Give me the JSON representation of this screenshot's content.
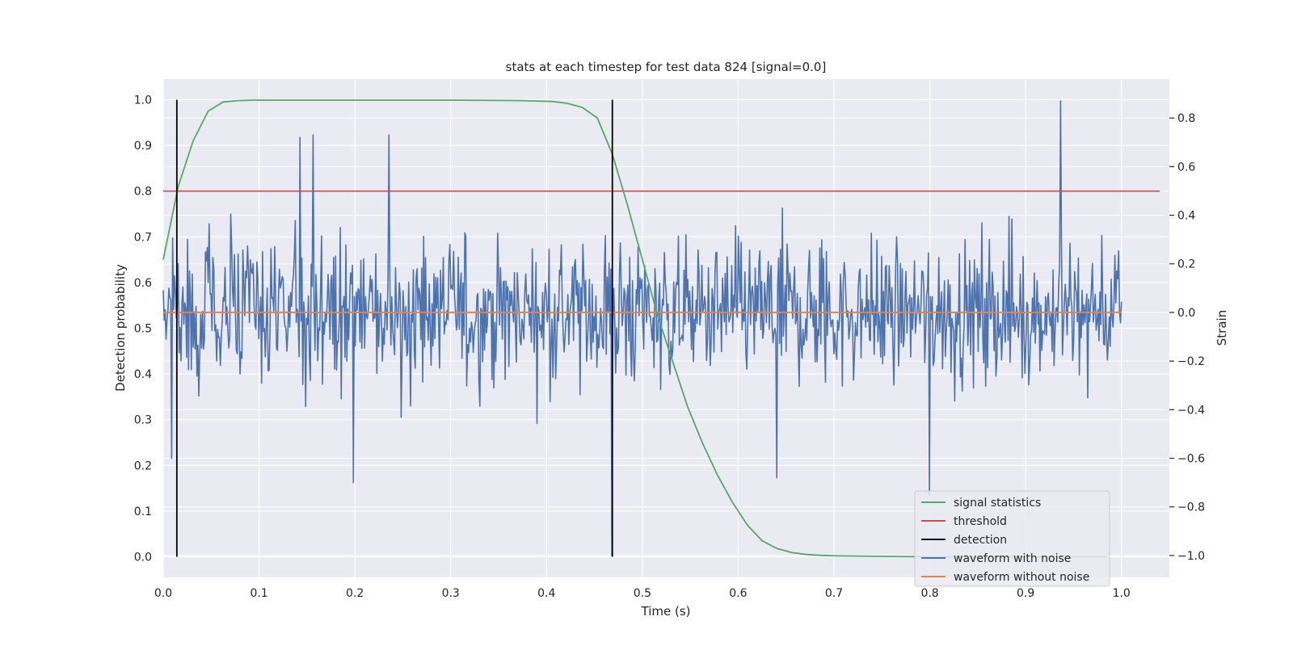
{
  "chart_data": {
    "type": "line",
    "title": "stats at each timestep for test data 824 [signal=0.0]",
    "xlabel": "Time (s)",
    "ylabel": "Detection probability",
    "y2label": "Strain",
    "xlim": [
      0.0,
      1.05
    ],
    "ylim": [
      -0.045,
      1.045
    ],
    "y2lim": [
      -1.09,
      0.96
    ],
    "xticks": [
      "0.0",
      "0.1",
      "0.2",
      "0.3",
      "0.4",
      "0.5",
      "0.6",
      "0.7",
      "0.8",
      "0.9",
      "1.0"
    ],
    "xtick_values": [
      0,
      0.1,
      0.2,
      0.3,
      0.4,
      0.5,
      0.6,
      0.7,
      0.8,
      0.9,
      1.0
    ],
    "yticks": [
      "0.0",
      "0.1",
      "0.2",
      "0.3",
      "0.4",
      "0.5",
      "0.6",
      "0.7",
      "0.8",
      "0.9",
      "1.0"
    ],
    "ytick_values": [
      0,
      0.1,
      0.2,
      0.3,
      0.4,
      0.5,
      0.6,
      0.7,
      0.8,
      0.9,
      1.0
    ],
    "y2ticks": [
      "0.8",
      "0.6",
      "0.4",
      "0.2",
      "0.0",
      "−0.2",
      "−0.4",
      "−0.6",
      "−0.8",
      "−1.0"
    ],
    "y2tick_values": [
      0.8,
      0.6,
      0.4,
      0.2,
      0.0,
      -0.2,
      -0.4,
      -0.6,
      -0.8,
      -1.0
    ],
    "grid": true,
    "legend_position": "bottom-right",
    "series": [
      {
        "name": "signal statistics",
        "color": "#55a868",
        "axis": "left",
        "x": [
          0.0,
          0.0156,
          0.0312,
          0.0469,
          0.0625,
          0.0781,
          0.0938,
          0.1094,
          0.125,
          0.2,
          0.3,
          0.375,
          0.4062,
          0.4219,
          0.4375,
          0.4531,
          0.4688,
          0.4844,
          0.5,
          0.5156,
          0.5312,
          0.5469,
          0.5625,
          0.5781,
          0.5938,
          0.6094,
          0.625,
          0.6406,
          0.6562,
          0.6719,
          0.6875,
          0.7031,
          0.75,
          0.8,
          0.9,
          0.9844
        ],
        "y": [
          0.65,
          0.81,
          0.91,
          0.975,
          0.995,
          0.998,
          0.999,
          0.999,
          0.999,
          0.999,
          0.999,
          0.998,
          0.996,
          0.992,
          0.983,
          0.96,
          0.88,
          0.77,
          0.65,
          0.53,
          0.43,
          0.33,
          0.25,
          0.18,
          0.12,
          0.07,
          0.035,
          0.018,
          0.009,
          0.005,
          0.003,
          0.002,
          0.001,
          0.0,
          0.0,
          0.0
        ]
      },
      {
        "name": "threshold",
        "color": "#c44e52",
        "axis": "left",
        "x": [
          0.0,
          1.04
        ],
        "y": [
          0.8,
          0.8
        ]
      },
      {
        "name": "detection",
        "color": "#000000",
        "axis": "left",
        "type": "vlines",
        "x": [
          0.0142,
          0.4687
        ],
        "ymin": 0.0,
        "ymax": 1.0
      },
      {
        "name": "waveform with noise",
        "color": "#4c72b0",
        "axis": "right",
        "x_start": 0.0,
        "x_end": 1.0,
        "generator": "pseudo-random noise, 2048 samples, std 0.27",
        "peaks": [
          {
            "x": 0.0085,
            "y": -0.6
          },
          {
            "x": 0.143,
            "y": 0.72
          },
          {
            "x": 0.156,
            "y": 0.73
          },
          {
            "x": 0.236,
            "y": 0.73
          },
          {
            "x": 0.468,
            "y": -1.0
          },
          {
            "x": 0.8,
            "y": -0.75
          },
          {
            "x": 0.936,
            "y": 0.87
          },
          {
            "x": 0.198,
            "y": -0.7
          },
          {
            "x": 0.64,
            "y": -0.68
          }
        ]
      },
      {
        "name": "waveform without noise",
        "color": "#dd8452",
        "axis": "right",
        "x": [
          0.0,
          1.0
        ],
        "y": [
          0.0,
          0.0
        ]
      }
    ]
  }
}
